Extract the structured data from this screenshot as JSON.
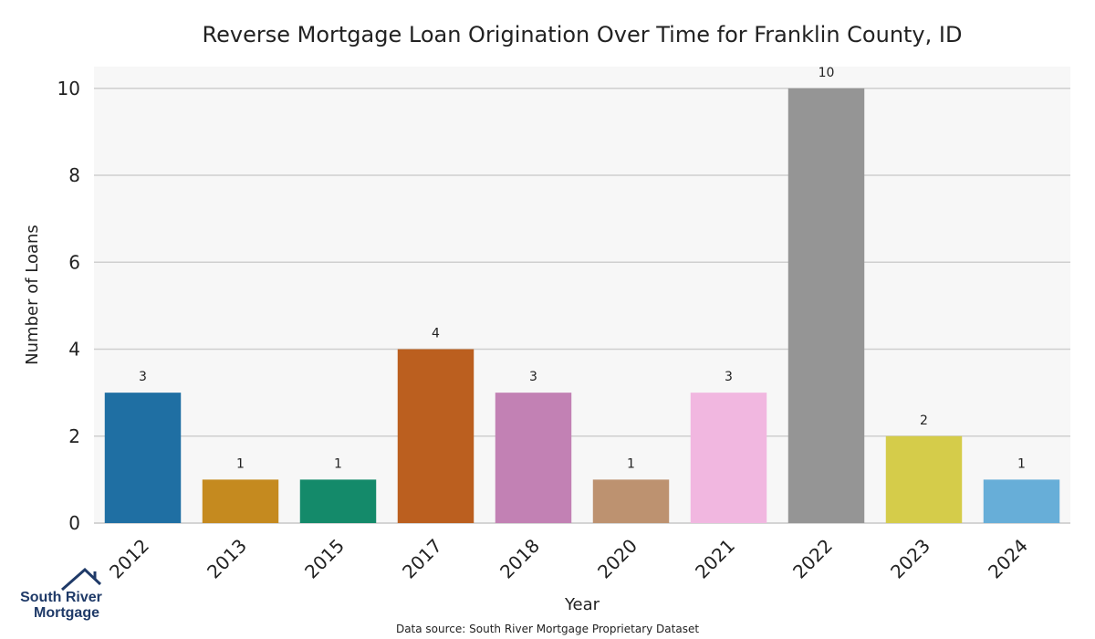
{
  "chart_data": {
    "type": "bar",
    "title": "Reverse Mortgage Loan Origination Over Time for Franklin County, ID",
    "xlabel": "Year",
    "ylabel": "Number of Loans",
    "categories": [
      "2012",
      "2013",
      "2015",
      "2017",
      "2018",
      "2020",
      "2021",
      "2022",
      "2023",
      "2024"
    ],
    "values": [
      3,
      1,
      1,
      4,
      3,
      1,
      3,
      10,
      2,
      1
    ],
    "colors": [
      "#1f6fa3",
      "#c58a1f",
      "#148a6a",
      "#bb5f1f",
      "#c281b4",
      "#bd9270",
      "#f1b7e0",
      "#959595",
      "#d5cc4a",
      "#67aed8"
    ],
    "ylim": [
      0,
      10.5
    ],
    "yticks": [
      0,
      2,
      4,
      6,
      8,
      10
    ],
    "grid": true,
    "plot_background": "#f7f7f7",
    "grid_color": "#cfcfcf"
  },
  "source_note": "Data source: South River Mortgage Proprietary Dataset",
  "logo": {
    "line1": "South River",
    "line2": "Mortgage",
    "color": "#1f3a68"
  }
}
